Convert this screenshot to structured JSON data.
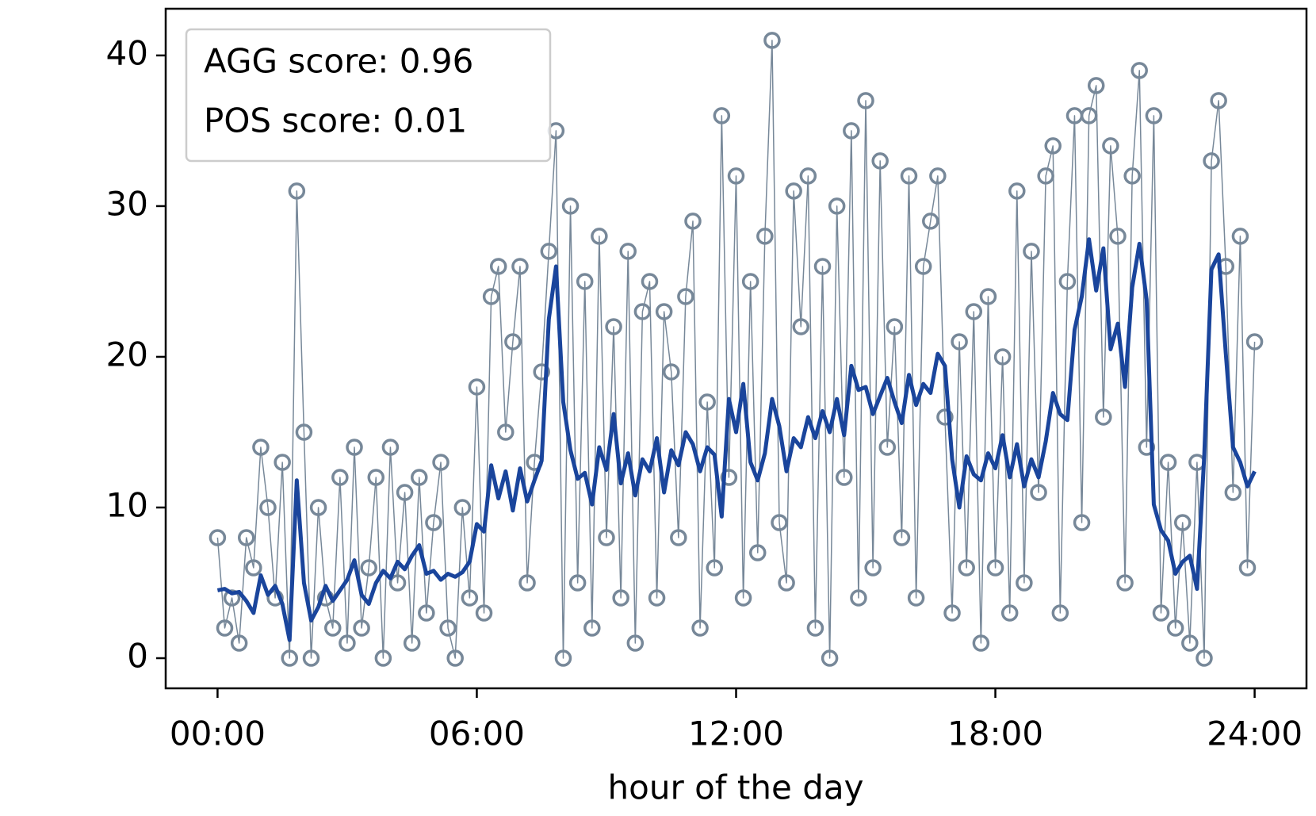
{
  "chart_data": {
    "type": "line",
    "x_label": "hour of the day",
    "annotations": [
      "AGG score: 0.96",
      "POS score: 0.01"
    ],
    "xlim": [
      -1.2,
      25.2
    ],
    "xticks": [
      {
        "value": 0,
        "label": "00:00"
      },
      {
        "value": 6,
        "label": "06:00"
      },
      {
        "value": 12,
        "label": "12:00"
      },
      {
        "value": 18,
        "label": "18:00"
      },
      {
        "value": 24,
        "label": "24:00"
      }
    ],
    "ylim": [
      -2,
      43.1
    ],
    "yticks": [
      0,
      10,
      20,
      30,
      40
    ],
    "x": [
      0,
      0.1667,
      0.3333,
      0.5,
      0.6667,
      0.8333,
      1,
      1.1667,
      1.3333,
      1.5,
      1.6667,
      1.8333,
      2,
      2.1667,
      2.3333,
      2.5,
      2.6667,
      2.8333,
      3,
      3.1667,
      3.3333,
      3.5,
      3.6667,
      3.8333,
      4,
      4.1667,
      4.3333,
      4.5,
      4.6667,
      4.8333,
      5,
      5.1667,
      5.3333,
      5.5,
      5.6667,
      5.8333,
      6,
      6.1667,
      6.3333,
      6.5,
      6.6667,
      6.8333,
      7,
      7.1667,
      7.3333,
      7.5,
      7.6667,
      7.8333,
      8,
      8.1667,
      8.3333,
      8.5,
      8.6667,
      8.8333,
      9,
      9.1667,
      9.3333,
      9.5,
      9.6667,
      9.8333,
      10,
      10.1667,
      10.3333,
      10.5,
      10.6667,
      10.8333,
      11,
      11.1667,
      11.3333,
      11.5,
      11.6667,
      11.8333,
      12,
      12.1667,
      12.3333,
      12.5,
      12.6667,
      12.8333,
      13,
      13.1667,
      13.3333,
      13.5,
      13.6667,
      13.8333,
      14,
      14.1667,
      14.3333,
      14.5,
      14.6667,
      14.8333,
      15,
      15.1667,
      15.3333,
      15.5,
      15.6667,
      15.8333,
      16,
      16.1667,
      16.3333,
      16.5,
      16.6667,
      16.8333,
      17,
      17.1667,
      17.3333,
      17.5,
      17.6667,
      17.8333,
      18,
      18.1667,
      18.3333,
      18.5,
      18.6667,
      18.8333,
      19,
      19.1667,
      19.3333,
      19.5,
      19.6667,
      19.8333,
      20,
      20.1667,
      20.3333,
      20.5,
      20.6667,
      20.8333,
      21,
      21.1667,
      21.3333,
      21.5,
      21.6667,
      21.8333,
      22,
      22.1667,
      22.3333,
      22.5,
      22.6667,
      22.8333,
      23,
      23.1667,
      23.3333,
      23.5,
      23.6667,
      23.8333,
      24
    ],
    "series": [
      {
        "color": "#778899",
        "markers": true,
        "values": [
          8,
          2,
          4,
          1,
          8,
          6,
          14,
          10,
          4,
          13,
          0,
          31,
          15,
          0,
          10,
          4,
          2,
          12,
          1,
          14,
          2,
          6,
          12,
          0,
          14,
          5,
          11,
          1,
          12,
          3,
          9,
          13,
          2,
          0,
          10,
          4,
          18,
          3,
          24,
          26,
          15,
          21,
          26,
          5,
          13,
          19,
          27,
          35,
          0,
          30,
          5,
          25,
          2,
          28,
          8,
          22,
          4,
          27,
          1,
          23,
          25,
          4,
          23,
          19,
          8,
          24,
          29,
          2,
          17,
          6,
          36,
          12,
          32,
          4,
          25,
          7,
          28,
          41,
          9,
          5,
          31,
          22,
          32,
          2,
          26,
          0,
          30,
          12,
          35,
          4,
          37,
          6,
          33,
          14,
          22,
          8,
          32,
          4,
          26,
          29,
          32,
          16,
          3,
          21,
          6,
          23,
          1,
          24,
          6,
          20,
          3,
          31,
          5,
          27,
          11,
          32,
          34,
          3,
          25,
          36,
          9,
          36,
          38,
          16,
          34,
          28,
          5,
          32,
          39,
          14,
          36,
          3,
          13,
          2,
          9,
          1,
          13,
          0,
          33,
          37,
          26,
          11,
          28,
          6,
          21
        ]
      },
      {
        "color": "#1a459c",
        "markers": false,
        "values": [
          4.5,
          4.6,
          4.3,
          4.4,
          3.8,
          3.0,
          5.5,
          4.2,
          4.8,
          3.6,
          1.2,
          11.8,
          5.0,
          2.5,
          3.4,
          4.8,
          3.8,
          4.5,
          5.2,
          6.5,
          4.2,
          3.6,
          5.0,
          5.8,
          5.3,
          6.4,
          5.9,
          6.8,
          7.5,
          5.6,
          5.8,
          5.2,
          5.6,
          5.4,
          5.7,
          6.4,
          8.9,
          8.4,
          12.8,
          10.6,
          12.4,
          9.8,
          12.6,
          10.4,
          11.8,
          13.1,
          22.5,
          26.0,
          17.0,
          13.8,
          11.9,
          12.3,
          10.2,
          14.0,
          12.5,
          16.2,
          11.6,
          13.6,
          10.8,
          13.2,
          12.4,
          14.6,
          11.0,
          13.8,
          12.8,
          15.0,
          14.2,
          12.4,
          14.0,
          13.5,
          9.4,
          17.2,
          15.0,
          18.2,
          13.0,
          11.8,
          13.6,
          17.2,
          15.4,
          12.4,
          14.6,
          14.0,
          16.0,
          14.6,
          16.4,
          15.0,
          17.2,
          14.8,
          19.4,
          17.8,
          18.0,
          16.2,
          17.4,
          18.6,
          17.0,
          15.6,
          18.8,
          16.8,
          18.2,
          17.6,
          20.2,
          19.4,
          13.2,
          10.0,
          13.4,
          12.2,
          11.8,
          13.6,
          12.6,
          14.8,
          12.0,
          14.2,
          11.4,
          13.2,
          12.0,
          14.4,
          17.6,
          16.2,
          15.8,
          21.8,
          24.0,
          27.8,
          24.4,
          27.2,
          20.5,
          22.2,
          18.0,
          24.6,
          27.5,
          23.8,
          10.2,
          8.5,
          7.8,
          5.6,
          6.4,
          6.8,
          4.6,
          13.4,
          25.8,
          26.8,
          20.2,
          14.0,
          13.0,
          11.4,
          12.4
        ]
      }
    ]
  }
}
